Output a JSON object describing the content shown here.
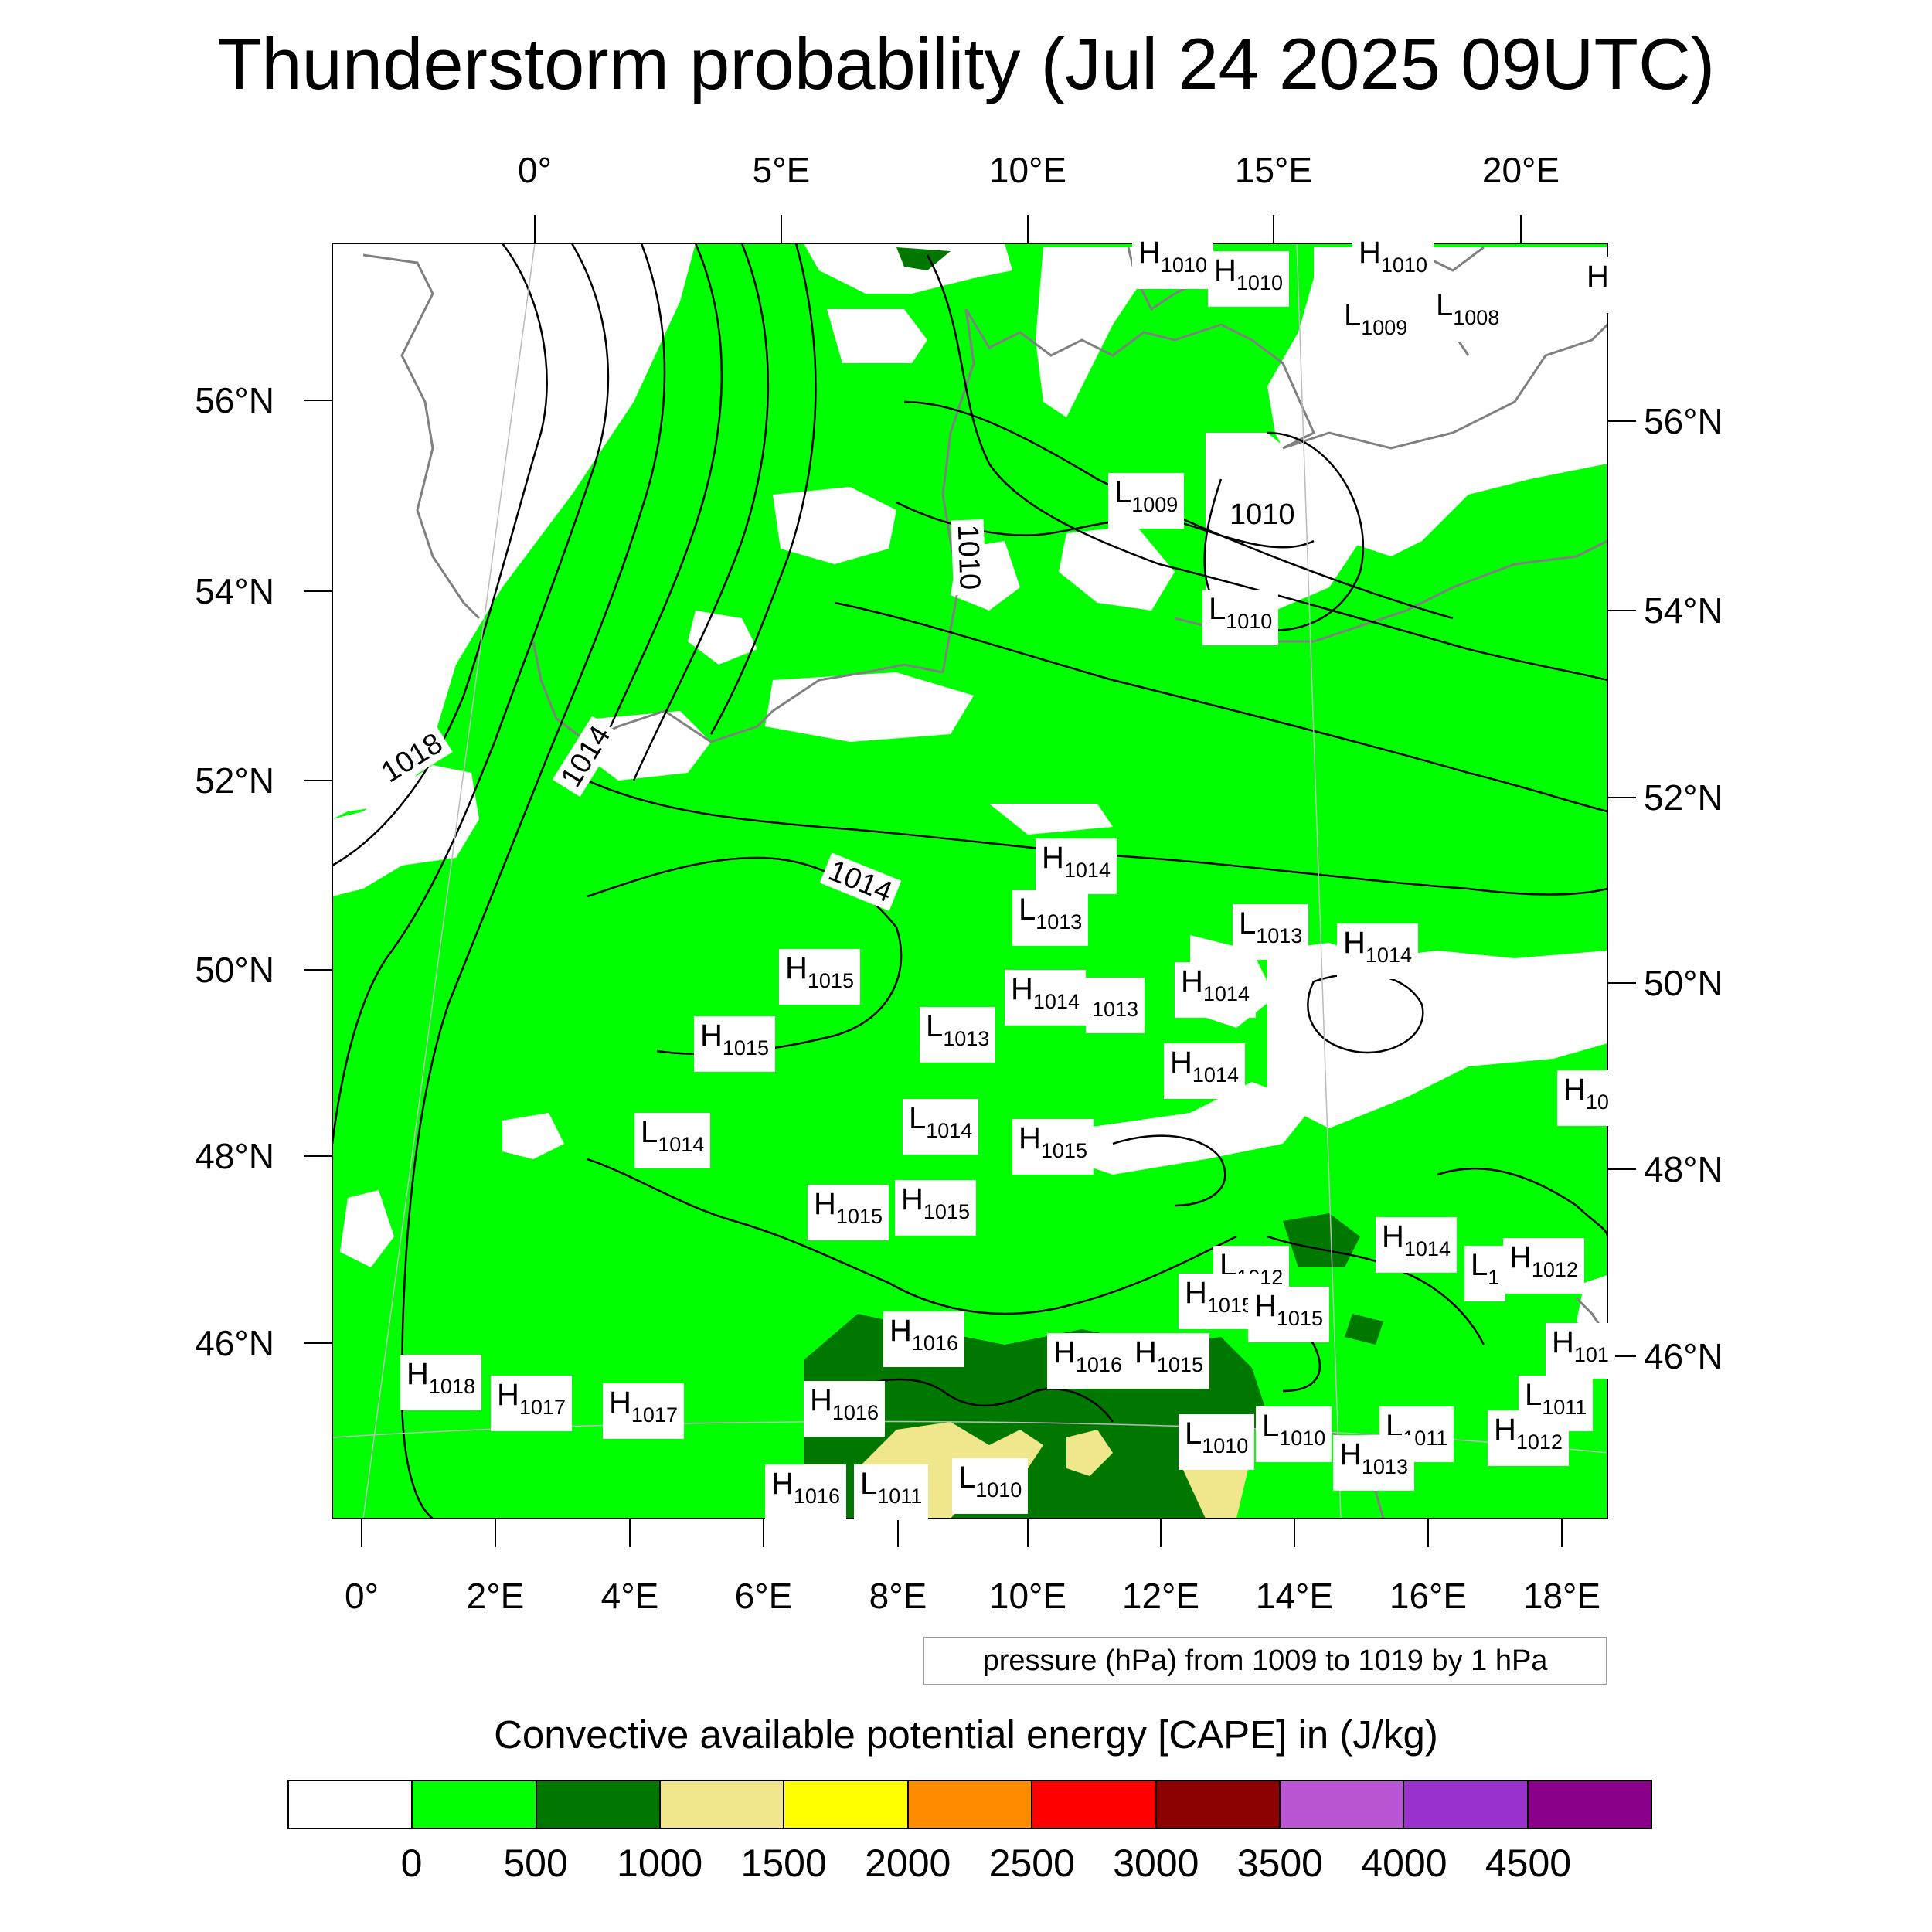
{
  "title": "Thunderstorm probability (Jul 24 2025 09UTC)",
  "ticks_top": [
    "0°",
    "5°E",
    "10°E",
    "15°E",
    "20°E"
  ],
  "ticks_bottom": [
    "0°",
    "2°E",
    "4°E",
    "6°E",
    "8°E",
    "10°E",
    "12°E",
    "14°E",
    "16°E",
    "18°E"
  ],
  "ticks_left": [
    "56°N",
    "54°N",
    "52°N",
    "50°N",
    "48°N",
    "46°N"
  ],
  "ticks_right": [
    "56°N",
    "54°N",
    "52°N",
    "50°N",
    "48°N",
    "46°N"
  ],
  "pressure_systems": [
    {
      "t": "H",
      "v": "1010"
    },
    {
      "t": "H",
      "v": "1010"
    },
    {
      "t": "H",
      "v": "1010"
    },
    {
      "t": "L",
      "v": "1009"
    },
    {
      "t": "L",
      "v": "1008"
    },
    {
      "t": "L",
      "v": "1009"
    },
    {
      "t": "L",
      "v": "1010"
    },
    {
      "t": "H",
      "v": "1014"
    },
    {
      "t": "L",
      "v": "1013"
    },
    {
      "t": "L",
      "v": "1013"
    },
    {
      "t": "H",
      "v": "1014"
    },
    {
      "t": "H",
      "v": "1015"
    },
    {
      "t": "H",
      "v": "1014"
    },
    {
      "t": "",
      "v": "1013"
    },
    {
      "t": "H",
      "v": "1014"
    },
    {
      "t": "H",
      "v": "1015"
    },
    {
      "t": "L",
      "v": "1013"
    },
    {
      "t": "H",
      "v": "1014"
    },
    {
      "t": "L",
      "v": "1014"
    },
    {
      "t": "L",
      "v": "1014"
    },
    {
      "t": "H",
      "v": "1015"
    },
    {
      "t": "H",
      "v": "1015"
    },
    {
      "t": "H",
      "v": "1015"
    },
    {
      "t": "H",
      "v": "1014"
    },
    {
      "t": "L",
      "v": "1012"
    },
    {
      "t": "L",
      "v": "1"
    },
    {
      "t": "H",
      "v": "1012"
    },
    {
      "t": "H",
      "v": "1015"
    },
    {
      "t": "H",
      "v": "1015"
    },
    {
      "t": "H",
      "v": "1016"
    },
    {
      "t": "H",
      "v": "1016"
    },
    {
      "t": "H",
      "v": "1015"
    },
    {
      "t": "H",
      "v": "1018"
    },
    {
      "t": "H",
      "v": "1017"
    },
    {
      "t": "H",
      "v": "1017"
    },
    {
      "t": "H",
      "v": "1016"
    },
    {
      "t": "L",
      "v": "1011"
    },
    {
      "t": "L",
      "v": "1010"
    },
    {
      "t": "H",
      "v": "1016"
    },
    {
      "t": "L",
      "v": "1010"
    },
    {
      "t": "L",
      "v": "1010"
    },
    {
      "t": "L",
      "v": "1011"
    },
    {
      "t": "H",
      "v": "1013"
    },
    {
      "t": "H",
      "v": "1012"
    },
    {
      "t": "L",
      "v": "1011"
    },
    {
      "t": "H",
      "v": "101"
    },
    {
      "t": "H",
      "v": "10"
    },
    {
      "t": "H",
      "v": ""
    }
  ],
  "contour_labels": [
    "1018",
    "1014",
    "1014",
    "1010",
    "1010"
  ],
  "contour_info": "pressure (hPa) from 1009 to 1019 by 1 hPa",
  "colorbar": {
    "title": "Convective available potential energy [CAPE] in (J/kg)",
    "colors": [
      "#ffffff",
      "#00ff00",
      "#007800",
      "#f0e68c",
      "#ffff00",
      "#ff8c00",
      "#ff0000",
      "#8b0000",
      "#ba55d3",
      "#9932cc",
      "#8b008b"
    ],
    "labels": [
      "0",
      "500",
      "1000",
      "1500",
      "2000",
      "2500",
      "3000",
      "3500",
      "4000",
      "4500"
    ]
  },
  "colors": {
    "green": "#00ff00",
    "dark_green": "#007800",
    "khaki": "#f0e68c",
    "coast": "#808080"
  }
}
